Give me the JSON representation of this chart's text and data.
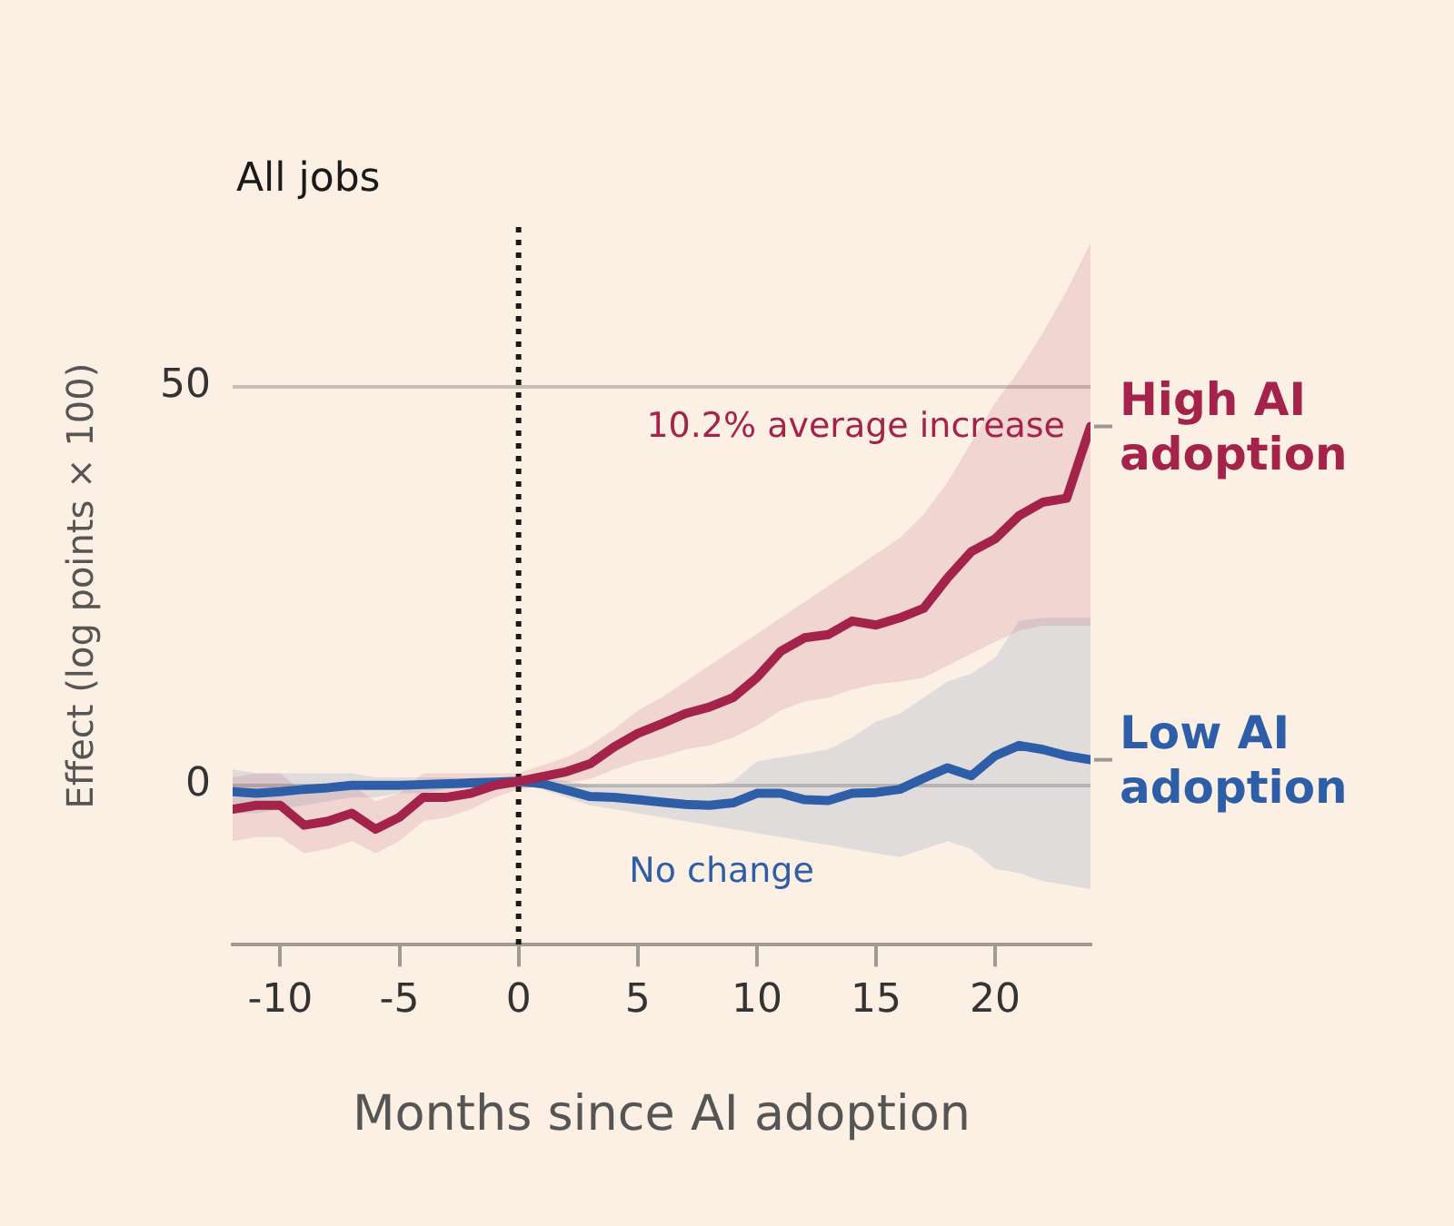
{
  "chart_data": {
    "type": "line",
    "title": "All jobs",
    "xlabel": "Months since AI adoption",
    "ylabel": "Effect (log points × 100)",
    "x": [
      -12,
      -11,
      -10,
      -9,
      -8,
      -7,
      -6,
      -5,
      -4,
      -3,
      -2,
      -1,
      0,
      1,
      2,
      3,
      4,
      5,
      6,
      7,
      8,
      9,
      10,
      11,
      12,
      13,
      14,
      15,
      16,
      17,
      18,
      19,
      20,
      21,
      22,
      23,
      24
    ],
    "series": [
      {
        "name": "High AI adoption",
        "color": "#a3234a",
        "values": [
          -3,
          -2.5,
          -2.5,
          -5,
          -4.5,
          -3.5,
          -5.5,
          -4,
          -1.5,
          -1.5,
          -1,
          0,
          0.5,
          1.1,
          1.7,
          2.7,
          4.8,
          6.5,
          7.7,
          9,
          9.8,
          11,
          13.5,
          16.8,
          18.5,
          18.9,
          20.6,
          20.1,
          21,
          22.2,
          26,
          29.3,
          30.9,
          33.8,
          35.5,
          36,
          45
        ],
        "lower": [
          -7,
          -6.5,
          -6.5,
          -8.5,
          -8,
          -7,
          -8.5,
          -7,
          -4.5,
          -4,
          -3,
          -1.5,
          -0.5,
          0,
          0.3,
          0.8,
          2,
          3,
          3.6,
          4.5,
          5,
          6,
          7.5,
          9.4,
          10.5,
          11,
          12,
          12.7,
          13,
          13.5,
          15,
          16.5,
          18,
          19.4,
          20,
          20,
          20
        ],
        "upper": [
          1,
          1.5,
          1.5,
          -1,
          -0.5,
          0,
          -2,
          -1,
          1.5,
          1.5,
          1.5,
          1.5,
          1.5,
          2.5,
          3.5,
          5,
          7,
          9.4,
          11,
          13,
          15,
          17,
          19,
          21,
          23,
          25,
          27,
          29,
          31,
          34,
          38,
          43,
          48,
          52,
          56.7,
          62,
          68
        ]
      },
      {
        "name": "Low AI adoption",
        "color": "#2e5ea8",
        "values": [
          -0.8,
          -1,
          -0.8,
          -0.5,
          -0.3,
          0,
          0,
          0,
          0.1,
          0.2,
          0.3,
          0.4,
          0.5,
          0.2,
          -0.6,
          -1.4,
          -1.5,
          -1.8,
          -2.1,
          -2.4,
          -2.5,
          -2.2,
          -1,
          -1,
          -1.8,
          -1.9,
          -1,
          -0.9,
          -0.5,
          0.9,
          2.2,
          1.2,
          3.7,
          5,
          4.5,
          3.7,
          3.2
        ],
        "lower": [
          -3.5,
          -3.5,
          -3,
          -2.5,
          -2,
          -1.5,
          -1.5,
          -1,
          -1,
          -0.5,
          -0.3,
          0,
          0.3,
          -0.5,
          -1.5,
          -2.5,
          -3,
          -3.5,
          -4,
          -4.5,
          -5,
          -5.5,
          -6,
          -6.5,
          -7,
          -7.5,
          -8,
          -8.5,
          -9,
          -8,
          -7,
          -8,
          -10.5,
          -11,
          -12,
          -12.5,
          -13
        ],
        "upper": [
          2,
          1.5,
          1.5,
          1.5,
          1.5,
          1.5,
          1,
          1,
          1,
          1,
          0.8,
          0.8,
          0.7,
          1,
          0.5,
          0,
          0,
          0,
          0,
          0,
          0,
          0.5,
          3,
          3.5,
          4,
          4.5,
          6,
          8,
          9,
          11,
          13,
          14,
          16,
          20.6,
          21,
          21,
          21
        ]
      }
    ],
    "annotations": [
      "10.2% average increase",
      "No change"
    ],
    "ref_lines": [
      {
        "axis": "x",
        "value": 0,
        "label": null,
        "color": "#1a1a1a",
        "line_style": "dotted"
      }
    ],
    "xlim": [
      -12,
      24
    ],
    "ylim": [
      -20,
      70
    ],
    "xticks": [
      -10,
      -5,
      0,
      5,
      10,
      15,
      20
    ],
    "yticks": [
      0,
      50
    ],
    "grid": "y",
    "legend": false,
    "marker": "none",
    "line_style": "solid"
  }
}
